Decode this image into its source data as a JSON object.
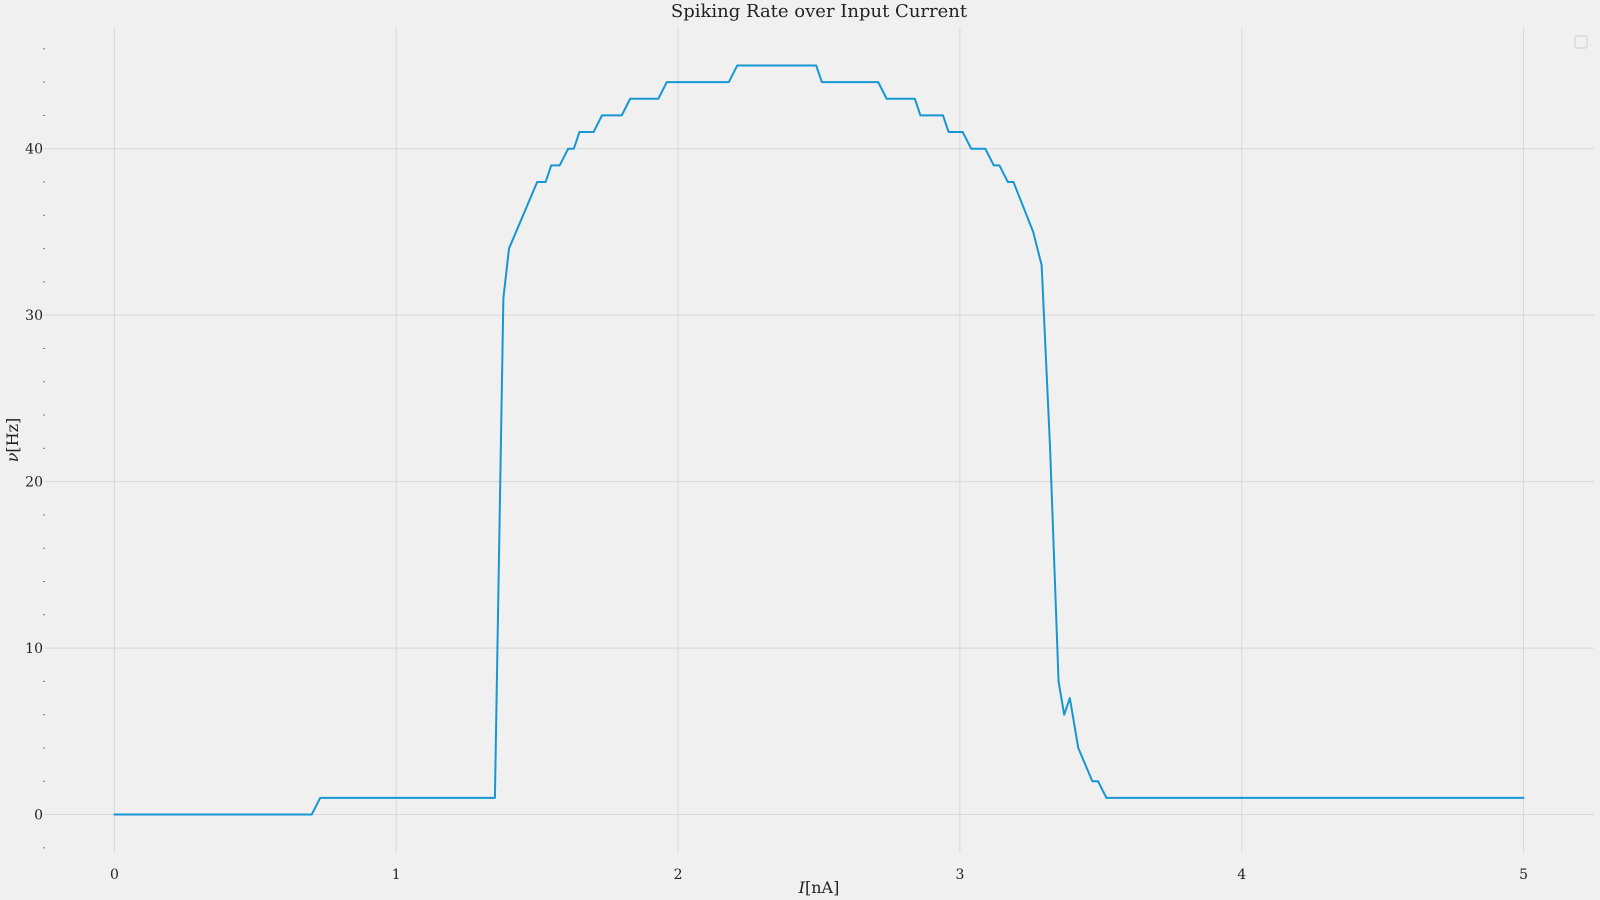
{
  "chart_data": {
    "type": "line",
    "title": "Spiking Rate over Input Current",
    "xlabel_prefix": "I",
    "xlabel_unit": "[nA]",
    "ylabel_prefix": "ν",
    "ylabel_unit": "[Hz]",
    "xlim": [
      -0.25,
      5.25
    ],
    "ylim": [
      -2.25,
      47.25
    ],
    "x_ticks": [
      0,
      1,
      2,
      3,
      4,
      5
    ],
    "y_ticks": [
      0,
      10,
      20,
      30,
      40
    ],
    "grid": true,
    "legend": "top-right",
    "color": "#1696d2",
    "series": [
      {
        "points": [
          [
            0.0,
            0
          ],
          [
            0.7,
            0
          ],
          [
            0.73,
            1
          ],
          [
            1.35,
            1
          ],
          [
            1.38,
            31
          ],
          [
            1.4,
            34
          ],
          [
            1.5,
            38
          ],
          [
            1.53,
            38
          ],
          [
            1.55,
            39
          ],
          [
            1.58,
            39
          ],
          [
            1.61,
            40
          ],
          [
            1.63,
            40
          ],
          [
            1.65,
            41
          ],
          [
            1.7,
            41
          ],
          [
            1.73,
            42
          ],
          [
            1.8,
            42
          ],
          [
            1.83,
            43
          ],
          [
            1.93,
            43
          ],
          [
            1.96,
            44
          ],
          [
            2.18,
            44
          ],
          [
            2.21,
            45
          ],
          [
            2.49,
            45
          ],
          [
            2.51,
            44
          ],
          [
            2.71,
            44
          ],
          [
            2.74,
            43
          ],
          [
            2.84,
            43
          ],
          [
            2.86,
            42
          ],
          [
            2.94,
            42
          ],
          [
            2.96,
            41
          ],
          [
            3.01,
            41
          ],
          [
            3.04,
            40
          ],
          [
            3.09,
            40
          ],
          [
            3.12,
            39
          ],
          [
            3.14,
            39
          ],
          [
            3.17,
            38
          ],
          [
            3.19,
            38
          ],
          [
            3.26,
            35
          ],
          [
            3.29,
            33
          ],
          [
            3.32,
            22
          ],
          [
            3.35,
            8
          ],
          [
            3.37,
            6
          ],
          [
            3.39,
            7
          ],
          [
            3.42,
            4
          ],
          [
            3.47,
            2
          ],
          [
            3.49,
            2
          ],
          [
            3.52,
            1
          ],
          [
            5.0,
            1
          ]
        ]
      }
    ]
  }
}
